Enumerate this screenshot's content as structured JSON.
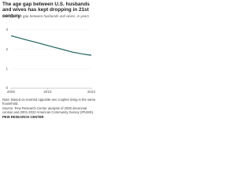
{
  "chart_data": {
    "type": "line",
    "title": "The age gap between U.S. husbands and wives has kept dropping in 21st century",
    "subtitle": "Average age gap between husbands and wives, in years",
    "x": [
      2000,
      2001,
      2002,
      2003,
      2004,
      2005,
      2006,
      2007,
      2008,
      2009,
      2010,
      2011,
      2012,
      2013,
      2014,
      2015,
      2016,
      2017,
      2018,
      2019,
      2020,
      2021,
      2022
    ],
    "series": [
      {
        "name": "Average age gap",
        "color": "#2f6e6a",
        "values": [
          2.7,
          2.65,
          2.6,
          2.55,
          2.5,
          2.45,
          2.4,
          2.35,
          2.3,
          2.25,
          2.2,
          2.15,
          2.1,
          2.05,
          2.0,
          1.95,
          1.9,
          1.85,
          1.82,
          1.78,
          1.75,
          1.72,
          1.7
        ]
      }
    ],
    "xlim": [
      2000,
      2022
    ],
    "xticks": [
      2000,
      2010,
      2022
    ],
    "ylim": [
      0,
      3
    ],
    "yticks": [
      0,
      1,
      2,
      3
    ],
    "grid": true,
    "notes": [
      "Note: Based on married opposite-sex couples living in the same household.",
      "Source: Pew Research Center analysis of 2000 decennial census and 2001-2022 American Community Survey (IPUMS).",
      "PEW RESEARCH CENTER"
    ]
  }
}
